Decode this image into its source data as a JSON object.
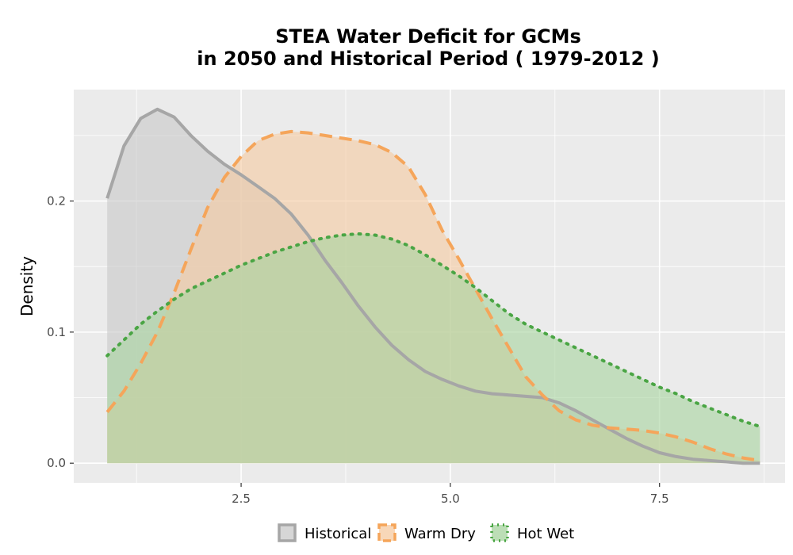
{
  "chart_data": {
    "type": "area",
    "title_lines": [
      "STEA  Water Deficit for GCMs",
      "in 2050 and Historical Period ( 1979-2012 )"
    ],
    "xlabel": "",
    "ylabel": "Density",
    "xlim": [
      0.5,
      9.0
    ],
    "ylim": [
      -0.015,
      0.285
    ],
    "x_ticks": [
      2.5,
      5.0,
      7.5
    ],
    "x_tick_labels": [
      "2.5",
      "5.0",
      "7.5"
    ],
    "y_ticks": [
      0.0,
      0.1,
      0.2
    ],
    "y_tick_labels": [
      "0.0",
      "0.1",
      "0.2"
    ],
    "grid": true,
    "legend_position": "bottom",
    "series": [
      {
        "name": "Historical",
        "color": "#a6a6a6",
        "fill": "#c8c8c8",
        "dash": "solid",
        "x": [
          0.9,
          1.1,
          1.3,
          1.5,
          1.7,
          1.9,
          2.1,
          2.3,
          2.5,
          2.7,
          2.9,
          3.1,
          3.3,
          3.5,
          3.7,
          3.9,
          4.1,
          4.3,
          4.5,
          4.7,
          4.9,
          5.1,
          5.3,
          5.5,
          5.7,
          5.9,
          6.1,
          6.3,
          6.5,
          6.7,
          6.9,
          7.1,
          7.3,
          7.5,
          7.7,
          7.9,
          8.1,
          8.3,
          8.5,
          8.7
        ],
        "y": [
          0.202,
          0.242,
          0.263,
          0.27,
          0.264,
          0.25,
          0.238,
          0.228,
          0.22,
          0.211,
          0.202,
          0.19,
          0.174,
          0.155,
          0.138,
          0.12,
          0.104,
          0.09,
          0.079,
          0.07,
          0.064,
          0.059,
          0.055,
          0.053,
          0.052,
          0.051,
          0.05,
          0.046,
          0.04,
          0.033,
          0.026,
          0.019,
          0.013,
          0.008,
          0.005,
          0.003,
          0.002,
          0.001,
          0.0,
          0.0
        ]
      },
      {
        "name": "Warm Dry",
        "color": "#f5a55a",
        "fill": "#f5c9a0",
        "dash": "dashed",
        "x": [
          0.9,
          1.1,
          1.3,
          1.5,
          1.7,
          1.9,
          2.1,
          2.3,
          2.5,
          2.7,
          2.9,
          3.1,
          3.3,
          3.5,
          3.7,
          3.9,
          4.1,
          4.3,
          4.5,
          4.7,
          4.9,
          5.1,
          5.3,
          5.5,
          5.7,
          5.9,
          6.1,
          6.3,
          6.5,
          6.7,
          6.9,
          7.1,
          7.3,
          7.5,
          7.7,
          7.9,
          8.1,
          8.3,
          8.5,
          8.7
        ],
        "y": [
          0.039,
          0.055,
          0.076,
          0.1,
          0.13,
          0.163,
          0.195,
          0.218,
          0.234,
          0.246,
          0.251,
          0.253,
          0.252,
          0.25,
          0.248,
          0.246,
          0.243,
          0.237,
          0.226,
          0.205,
          0.178,
          0.156,
          0.133,
          0.11,
          0.088,
          0.066,
          0.052,
          0.04,
          0.033,
          0.029,
          0.027,
          0.026,
          0.025,
          0.023,
          0.02,
          0.016,
          0.011,
          0.007,
          0.004,
          0.002
        ]
      },
      {
        "name": "Hot Wet",
        "color": "#4aa544",
        "fill": "#a6d39e",
        "dash": "dotted",
        "x": [
          0.9,
          1.1,
          1.3,
          1.5,
          1.7,
          1.9,
          2.1,
          2.3,
          2.5,
          2.7,
          2.9,
          3.1,
          3.3,
          3.5,
          3.7,
          3.9,
          4.1,
          4.3,
          4.5,
          4.7,
          4.9,
          5.1,
          5.3,
          5.5,
          5.7,
          5.9,
          6.1,
          6.3,
          6.5,
          6.7,
          6.9,
          7.1,
          7.3,
          7.5,
          7.7,
          7.9,
          8.1,
          8.3,
          8.5,
          8.7
        ],
        "y": [
          0.082,
          0.094,
          0.106,
          0.116,
          0.125,
          0.133,
          0.139,
          0.145,
          0.151,
          0.156,
          0.161,
          0.165,
          0.169,
          0.172,
          0.174,
          0.175,
          0.174,
          0.171,
          0.166,
          0.159,
          0.151,
          0.143,
          0.134,
          0.124,
          0.114,
          0.106,
          0.1,
          0.094,
          0.088,
          0.082,
          0.076,
          0.07,
          0.064,
          0.058,
          0.053,
          0.047,
          0.042,
          0.037,
          0.032,
          0.028
        ]
      }
    ]
  }
}
